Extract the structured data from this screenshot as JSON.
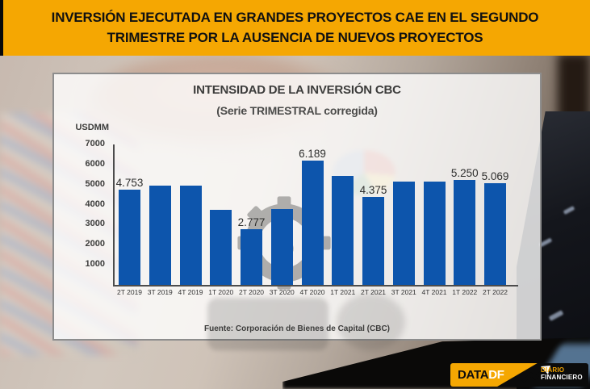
{
  "header": {
    "title_line1": "INVERSIÓN EJECUTADA EN GRANDES PROYECTOS CAE EN EL SEGUNDO",
    "title_line2": "TRIMESTRE POR LA AUSENCIA DE NUEVOS PROYECTOS"
  },
  "chart": {
    "title": "INTENSIDAD DE LA INVERSIÓN CBC",
    "subtitle": "(Serie TRIMESTRAL corregida)",
    "unit_label": "USDMM",
    "source": "Fuente: Corporación de Bienes de Capital (CBC)"
  },
  "chart_data": {
    "type": "bar",
    "title": "INTENSIDAD DE LA INVERSIÓN CBC",
    "subtitle": "(Serie TRIMESTRAL corregida)",
    "ylabel": "USDMM",
    "categories": [
      "2T 2019",
      "3T 2019",
      "4T 2019",
      "1T 2020",
      "2T 2020",
      "3T 2020",
      "4T 2020",
      "1T 2021",
      "2T 2021",
      "3T 2021",
      "4T 2021",
      "1T 2022",
      "2T 2022"
    ],
    "values": [
      4753,
      4950,
      4930,
      3760,
      2777,
      3780,
      6189,
      5450,
      4375,
      5130,
      5170,
      5250,
      5069
    ],
    "data_labels": [
      "4.753",
      null,
      null,
      null,
      "2.777",
      null,
      "6.189",
      null,
      "4.375",
      null,
      null,
      "5.250",
      "5.069"
    ],
    "yticks": [
      7000,
      6000,
      5000,
      4000,
      3000,
      2000,
      1000
    ],
    "ylim": [
      0,
      7000
    ],
    "grid": false,
    "legend": null,
    "bar_color": "#0d55ac",
    "source": "Fuente: Corporación de Bienes de Capital (CBC)"
  },
  "logo": {
    "data_label": "DATA",
    "df_label": "DF",
    "brand_line1": "DIARIO",
    "brand_line2": "FINANCIERO"
  },
  "colors": {
    "header_bg": "#f5a702",
    "bar": "#0d55ac",
    "text_dark": "#3c3c3b",
    "logo_black": "#0b0b0b"
  }
}
